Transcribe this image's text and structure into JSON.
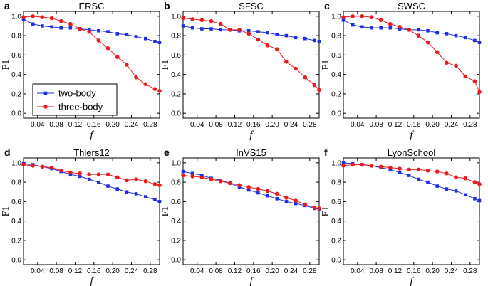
{
  "chart_data": {
    "type": "line",
    "x_tick_labels": [
      "0.04",
      "0.08",
      "0.12",
      "0.16",
      "0.20",
      "0.24",
      "0.28"
    ],
    "y_tick_labels": [
      "0.0",
      "0.2",
      "0.4",
      "0.6",
      "0.8",
      "1.0"
    ],
    "xlim": [
      0.01,
      0.3
    ],
    "ylim": [
      -0.05,
      1.05
    ],
    "legend": {
      "placement": "lower-left of panel a",
      "entries": [
        {
          "name": "two-body",
          "color": "#1f2fe0",
          "marker": "square"
        },
        {
          "name": "three-body",
          "color": "#e81c1c",
          "marker": "circle"
        }
      ]
    },
    "x": [
      0.01,
      0.03,
      0.05,
      0.07,
      0.09,
      0.11,
      0.13,
      0.15,
      0.17,
      0.19,
      0.21,
      0.23,
      0.25,
      0.27,
      0.29,
      0.3
    ],
    "panels": [
      {
        "letter": "a",
        "title": "ERSC",
        "xlabel": "f",
        "ylabel": "F1",
        "series": [
          {
            "name": "two-body",
            "values": [
              0.97,
              0.92,
              0.9,
              0.89,
              0.88,
              0.88,
              0.87,
              0.86,
              0.85,
              0.84,
              0.82,
              0.81,
              0.79,
              0.77,
              0.74,
              0.73
            ]
          },
          {
            "name": "three-body",
            "values": [
              0.99,
              1.0,
              0.99,
              0.98,
              0.95,
              0.92,
              0.87,
              0.84,
              0.75,
              0.67,
              0.58,
              0.5,
              0.37,
              0.3,
              0.25,
              0.23
            ]
          }
        ]
      },
      {
        "letter": "b",
        "title": "SFSC",
        "xlabel": "f",
        "ylabel": "F1",
        "series": [
          {
            "name": "two-body",
            "values": [
              0.9,
              0.88,
              0.87,
              0.87,
              0.86,
              0.86,
              0.85,
              0.85,
              0.84,
              0.83,
              0.81,
              0.8,
              0.78,
              0.77,
              0.75,
              0.74
            ]
          },
          {
            "name": "three-body",
            "values": [
              0.98,
              0.97,
              0.96,
              0.95,
              0.92,
              0.86,
              0.86,
              0.82,
              0.76,
              0.7,
              0.66,
              0.53,
              0.46,
              0.37,
              0.29,
              0.24
            ]
          }
        ]
      },
      {
        "letter": "c",
        "title": "SWSC",
        "xlabel": "f",
        "ylabel": "F1",
        "series": [
          {
            "name": "two-body",
            "values": [
              0.96,
              0.91,
              0.89,
              0.88,
              0.88,
              0.88,
              0.87,
              0.86,
              0.86,
              0.85,
              0.83,
              0.82,
              0.8,
              0.78,
              0.75,
              0.73
            ]
          },
          {
            "name": "three-body",
            "values": [
              0.99,
              1.0,
              1.0,
              0.99,
              0.96,
              0.92,
              0.89,
              0.86,
              0.8,
              0.73,
              0.63,
              0.52,
              0.49,
              0.38,
              0.33,
              0.22
            ]
          }
        ]
      },
      {
        "letter": "d",
        "title": "Thiers12",
        "xlabel": "f",
        "ylabel": "F1",
        "series": [
          {
            "name": "two-body",
            "values": [
              0.99,
              0.98,
              0.96,
              0.94,
              0.91,
              0.88,
              0.86,
              0.83,
              0.8,
              0.76,
              0.73,
              0.7,
              0.68,
              0.65,
              0.62,
              0.6
            ]
          },
          {
            "name": "three-body",
            "values": [
              0.98,
              0.97,
              0.96,
              0.95,
              0.92,
              0.9,
              0.89,
              0.88,
              0.88,
              0.88,
              0.85,
              0.82,
              0.83,
              0.81,
              0.78,
              0.77
            ]
          }
        ]
      },
      {
        "letter": "e",
        "title": "InVS15",
        "xlabel": "f",
        "ylabel": "F1",
        "series": [
          {
            "name": "two-body",
            "values": [
              0.91,
              0.89,
              0.87,
              0.84,
              0.82,
              0.79,
              0.75,
              0.72,
              0.69,
              0.66,
              0.63,
              0.6,
              0.58,
              0.56,
              0.53,
              0.52
            ]
          },
          {
            "name": "three-body",
            "values": [
              0.87,
              0.86,
              0.85,
              0.83,
              0.81,
              0.79,
              0.77,
              0.75,
              0.73,
              0.71,
              0.68,
              0.64,
              0.61,
              0.57,
              0.54,
              0.53
            ]
          }
        ]
      },
      {
        "letter": "f",
        "title": "LyonSchool",
        "xlabel": "f",
        "ylabel": "F1",
        "series": [
          {
            "name": "two-body",
            "values": [
              1.0,
              0.99,
              0.98,
              0.97,
              0.95,
              0.93,
              0.9,
              0.87,
              0.83,
              0.8,
              0.76,
              0.73,
              0.71,
              0.67,
              0.63,
              0.61
            ]
          },
          {
            "name": "three-body",
            "values": [
              0.97,
              0.98,
              0.98,
              0.97,
              0.96,
              0.95,
              0.94,
              0.93,
              0.93,
              0.92,
              0.91,
              0.89,
              0.85,
              0.84,
              0.8,
              0.78
            ]
          }
        ]
      }
    ]
  }
}
